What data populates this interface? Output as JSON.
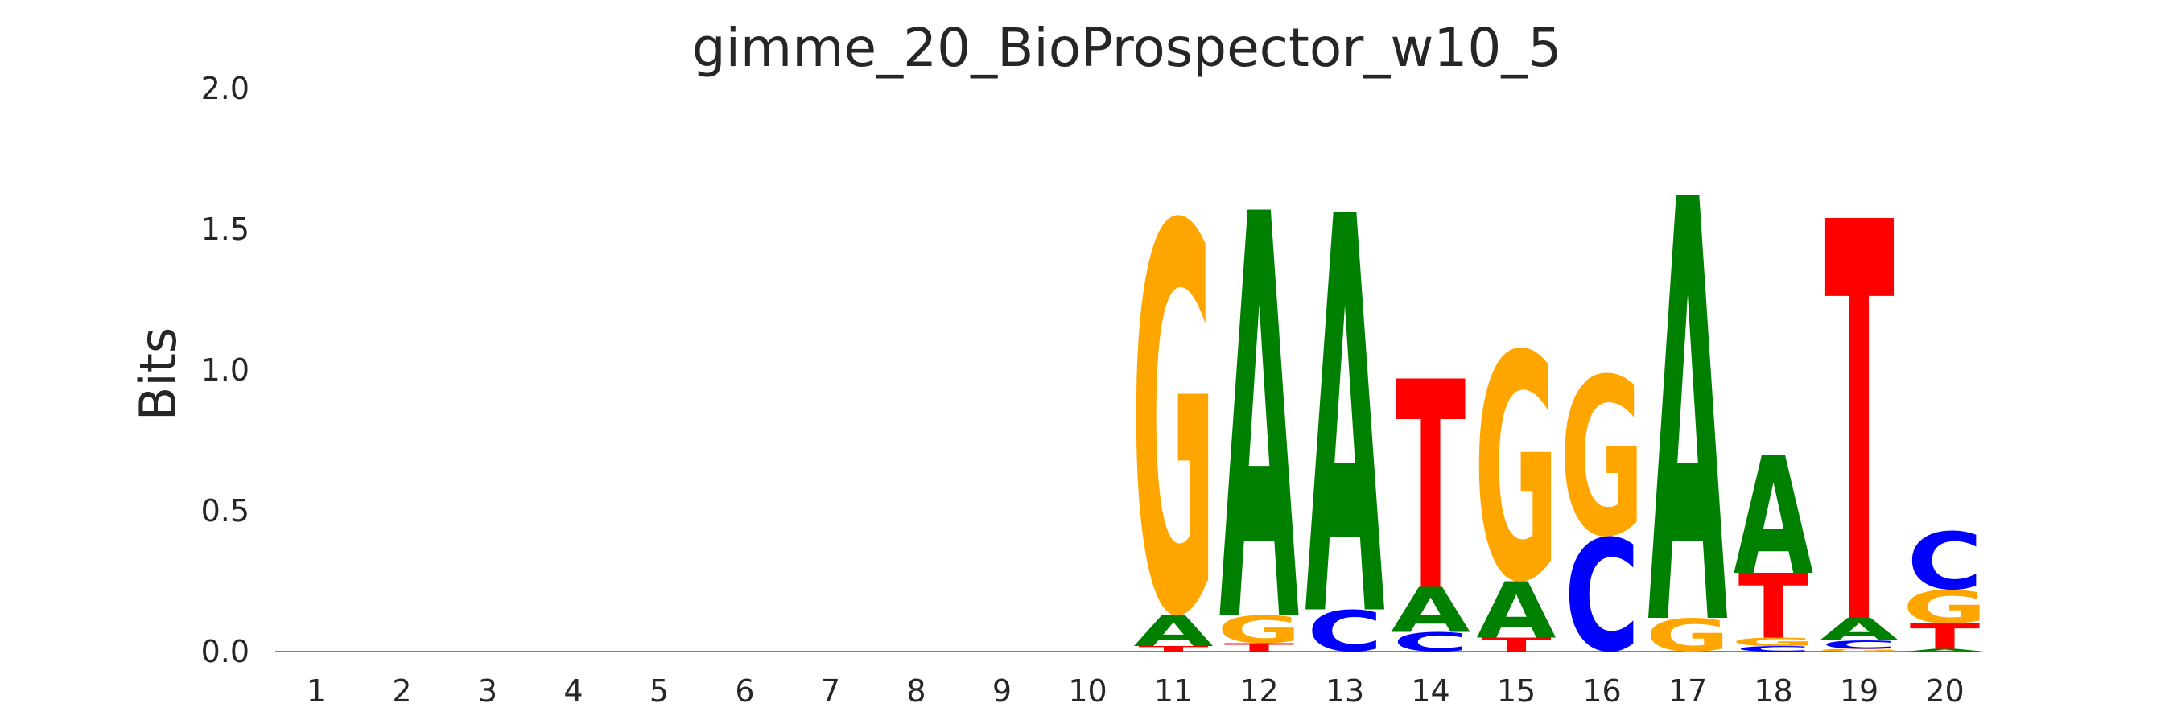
{
  "chart_data": {
    "type": "sequence-logo",
    "title": "gimme_20_BioProspector_w10_5",
    "xlabel": "",
    "ylabel": "Bits",
    "ylim": [
      0,
      2.0
    ],
    "yticks": [
      "0.0",
      "0.5",
      "1.0",
      "1.5",
      "2.0"
    ],
    "positions": [
      "1",
      "2",
      "3",
      "4",
      "5",
      "6",
      "7",
      "8",
      "9",
      "10",
      "11",
      "12",
      "13",
      "14",
      "15",
      "16",
      "17",
      "18",
      "19",
      "20"
    ],
    "colors": {
      "A": "#008000",
      "C": "#0000ff",
      "G": "#ffa500",
      "T": "#ff0000"
    },
    "columns": [
      [],
      [],
      [],
      [],
      [],
      [],
      [],
      [],
      [],
      [],
      [
        {
          "base": "T",
          "bits": 0.02
        },
        {
          "base": "A",
          "bits": 0.11
        },
        {
          "base": "G",
          "bits": 1.42
        }
      ],
      [
        {
          "base": "T",
          "bits": 0.03
        },
        {
          "base": "G",
          "bits": 0.1
        },
        {
          "base": "A",
          "bits": 1.44
        }
      ],
      [
        {
          "base": "C",
          "bits": 0.15
        },
        {
          "base": "A",
          "bits": 1.41
        }
      ],
      [
        {
          "base": "C",
          "bits": 0.07
        },
        {
          "base": "A",
          "bits": 0.16
        },
        {
          "base": "T",
          "bits": 0.74
        }
      ],
      [
        {
          "base": "T",
          "bits": 0.05
        },
        {
          "base": "A",
          "bits": 0.2
        },
        {
          "base": "G",
          "bits": 0.83
        }
      ],
      [
        {
          "base": "C",
          "bits": 0.41
        },
        {
          "base": "G",
          "bits": 0.58
        }
      ],
      [
        {
          "base": "G",
          "bits": 0.12
        },
        {
          "base": "A",
          "bits": 1.5
        }
      ],
      [
        {
          "base": "C",
          "bits": 0.02
        },
        {
          "base": "G",
          "bits": 0.03
        },
        {
          "base": "T",
          "bits": 0.23
        },
        {
          "base": "A",
          "bits": 0.42
        }
      ],
      [
        {
          "base": "G",
          "bits": 0.01
        },
        {
          "base": "C",
          "bits": 0.03
        },
        {
          "base": "A",
          "bits": 0.08
        },
        {
          "base": "T",
          "bits": 1.42
        }
      ],
      [
        {
          "base": "A",
          "bits": 0.01
        },
        {
          "base": "T",
          "bits": 0.09
        },
        {
          "base": "G",
          "bits": 0.12
        },
        {
          "base": "C",
          "bits": 0.21
        }
      ]
    ]
  }
}
